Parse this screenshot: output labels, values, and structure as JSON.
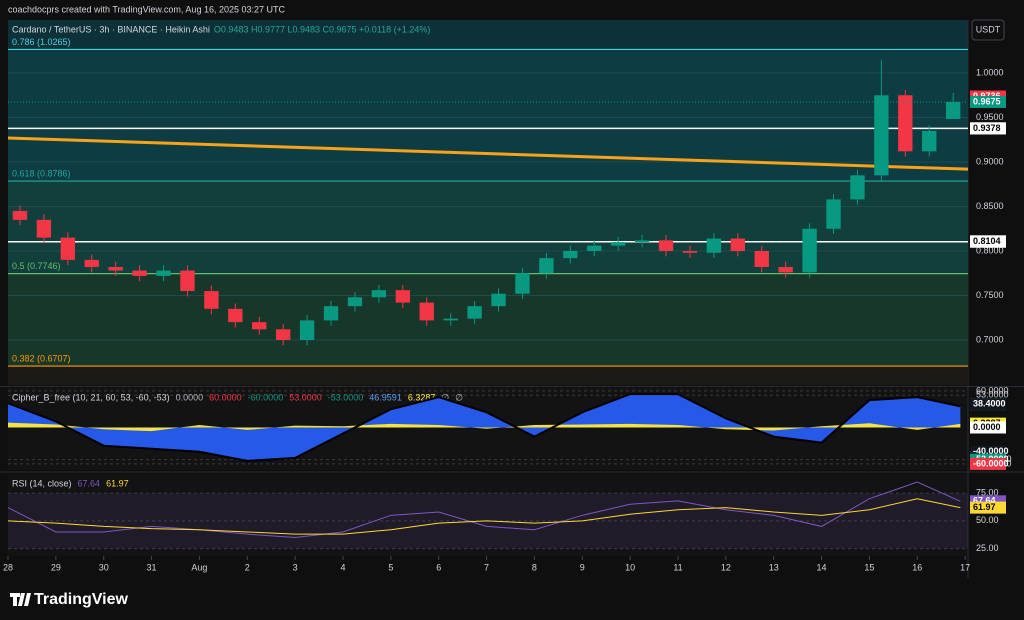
{
  "header": {
    "text": "coachdocprs created with TradingView.com, Aug 16, 2025 03:27 UTC"
  },
  "footer": {
    "logo": "TradingView"
  },
  "chart_data": [
    {
      "type": "candlestick",
      "title": "Cardano / TetherUS · 3h · BINANCE · Heikin Ashi",
      "ohlc_text": "O0.9483 H0.9777 L0.9483 C0.9675 +0.0118 (+1.24%)",
      "axis_unit": "USDT",
      "up_color": "#089981",
      "down_color": "#f23645",
      "x": [
        0.25,
        0.75,
        1.25,
        1.75,
        2.25,
        2.75,
        3.25,
        3.75,
        4.25,
        4.75,
        5.25,
        5.75,
        6.25,
        6.75,
        7.25,
        7.75,
        8.25,
        8.75,
        9.25,
        9.75,
        10.25,
        10.75,
        11.25,
        11.75,
        12.25,
        12.75,
        13.25,
        13.75,
        14.25,
        14.75,
        15.25,
        15.75,
        16.25,
        16.75,
        17.25,
        17.75,
        18.25,
        18.75,
        19.25,
        19.75
      ],
      "open": [
        0.845,
        0.835,
        0.815,
        0.79,
        0.782,
        0.778,
        0.772,
        0.778,
        0.755,
        0.735,
        0.72,
        0.712,
        0.7,
        0.722,
        0.738,
        0.748,
        0.756,
        0.742,
        0.722,
        0.724,
        0.738,
        0.752,
        0.775,
        0.792,
        0.8,
        0.806,
        0.81,
        0.812,
        0.8,
        0.798,
        0.814,
        0.8,
        0.782,
        0.776,
        0.825,
        0.858,
        0.885,
        0.975,
        0.912,
        0.9483
      ],
      "high": [
        0.851,
        0.841,
        0.821,
        0.796,
        0.788,
        0.784,
        0.784,
        0.784,
        0.761,
        0.741,
        0.726,
        0.718,
        0.728,
        0.744,
        0.754,
        0.762,
        0.762,
        0.748,
        0.73,
        0.744,
        0.758,
        0.781,
        0.798,
        0.806,
        0.812,
        0.816,
        0.818,
        0.818,
        0.806,
        0.82,
        0.82,
        0.806,
        0.788,
        0.831,
        0.864,
        0.891,
        1.015,
        0.981,
        0.941,
        0.9777
      ],
      "low": [
        0.829,
        0.809,
        0.784,
        0.776,
        0.772,
        0.766,
        0.766,
        0.749,
        0.729,
        0.714,
        0.706,
        0.694,
        0.694,
        0.716,
        0.732,
        0.742,
        0.736,
        0.716,
        0.716,
        0.718,
        0.732,
        0.746,
        0.769,
        0.786,
        0.794,
        0.8,
        0.804,
        0.794,
        0.792,
        0.792,
        0.794,
        0.776,
        0.77,
        0.77,
        0.819,
        0.852,
        0.879,
        0.906,
        0.906,
        0.9483
      ],
      "close": [
        0.835,
        0.815,
        0.79,
        0.782,
        0.778,
        0.772,
        0.778,
        0.755,
        0.735,
        0.72,
        0.712,
        0.7,
        0.722,
        0.738,
        0.748,
        0.756,
        0.742,
        0.722,
        0.724,
        0.738,
        0.752,
        0.775,
        0.792,
        0.8,
        0.806,
        0.81,
        0.812,
        0.8,
        0.798,
        0.814,
        0.8,
        0.782,
        0.776,
        0.825,
        0.858,
        0.885,
        0.975,
        0.912,
        0.935,
        0.9675
      ],
      "xlim": [
        0,
        20.06
      ],
      "xticks": [
        {
          "value": 0,
          "label": "28"
        },
        {
          "value": 1,
          "label": "29"
        },
        {
          "value": 2,
          "label": "30"
        },
        {
          "value": 3,
          "label": "31"
        },
        {
          "value": 4,
          "label": "Aug"
        },
        {
          "value": 5,
          "label": "2"
        },
        {
          "value": 6,
          "label": "3"
        },
        {
          "value": 7,
          "label": "4"
        },
        {
          "value": 8,
          "label": "5"
        },
        {
          "value": 9,
          "label": "6"
        },
        {
          "value": 10,
          "label": "7"
        },
        {
          "value": 11,
          "label": "8"
        },
        {
          "value": 12,
          "label": "9"
        },
        {
          "value": 13,
          "label": "10"
        },
        {
          "value": 14,
          "label": "11"
        },
        {
          "value": 15,
          "label": "12"
        },
        {
          "value": 16,
          "label": "13"
        },
        {
          "value": 17,
          "label": "14"
        },
        {
          "value": 18,
          "label": "15"
        },
        {
          "value": 19,
          "label": "16"
        },
        {
          "value": 20,
          "label": "17"
        }
      ],
      "ylim": [
        0.6494,
        1.0596
      ],
      "yticks": [
        {
          "value": 1.0,
          "label": "1.0000"
        },
        {
          "value": 0.95,
          "label": "0.9500"
        },
        {
          "value": 0.9,
          "label": "0.9000"
        },
        {
          "value": 0.85,
          "label": "0.8500"
        },
        {
          "value": 0.8,
          "label": "0.8000"
        },
        {
          "value": 0.75,
          "label": "0.7500"
        },
        {
          "value": 0.7,
          "label": "0.7000"
        }
      ],
      "fib_levels": [
        {
          "value": 1.0265,
          "label": "0.786 (1.0265)",
          "color": "#4dd0e1",
          "fill": "#0e3c43"
        },
        {
          "value": 0.8786,
          "label": "0.618 (0.8786)",
          "color": "#26a69a",
          "fill": "#113f3c"
        },
        {
          "value": 0.7746,
          "label": "0.5 (0.7746)",
          "color": "#66bb6a",
          "fill": "#17372a"
        },
        {
          "value": 0.6707,
          "label": "0.382 (0.6707)",
          "color": "#ff9800",
          "fill": "#1c1a14"
        }
      ],
      "trendline": {
        "x": [
          0,
          20.06
        ],
        "values": [
          0.927,
          0.892
        ],
        "color": "#f7a21b"
      },
      "h_lines": [
        {
          "value": 0.9378,
          "color": "#ffffff"
        },
        {
          "value": 0.8104,
          "color": "#ffffff"
        }
      ],
      "badges": [
        {
          "value": 0.9736,
          "label": "0.9736",
          "color": "#f23645"
        },
        {
          "value": 0.9675,
          "label": "0.9675",
          "color": "#089981"
        },
        {
          "value": 0.9378,
          "label": "0.9378",
          "color": "#ffffff"
        },
        {
          "value": 0.9378,
          "label": "0.9378",
          "color": "#ffffff"
        },
        {
          "value": 0.8109,
          "label": "0.8109",
          "color": "#ffffff"
        },
        {
          "value": 0.8104,
          "label": "0.8104",
          "color": "#ffffff"
        }
      ]
    },
    {
      "type": "area",
      "title": "Cipher_B_free (10, 21, 60, 53, -60, -53)",
      "legend_values": [
        {
          "value": "0.0000",
          "color": "#b2b5be"
        },
        {
          "value": "60.0000",
          "color": "#f23645"
        },
        {
          "value": "-60.0000",
          "color": "#089981"
        },
        {
          "value": "53.0000",
          "color": "#f23645"
        },
        {
          "value": "-53.0000",
          "color": "#089981"
        },
        {
          "value": "46.9591",
          "color": "#5b9cf6"
        },
        {
          "value": "6.3287",
          "color": "#ffeb3b"
        },
        {
          "value": "∅",
          "color": "#b2b5be"
        },
        {
          "value": "∅",
          "color": "#b2b5be"
        }
      ],
      "x": [
        0,
        1,
        2,
        3,
        4,
        5,
        6,
        7,
        8,
        9,
        10,
        11,
        12,
        13,
        14,
        15,
        16,
        17,
        18,
        19,
        19.9
      ],
      "series": [
        {
          "color": "#2962ff",
          "values": [
            40,
            10,
            -30,
            -35,
            -40,
            -55,
            -50,
            -10,
            30,
            50,
            25,
            -15,
            25,
            55,
            55,
            15,
            -15,
            -25,
            45,
            50,
            35
          ]
        },
        {
          "color": "#ffeb3b",
          "values": [
            8,
            5,
            -3,
            -6,
            4,
            -4,
            3,
            2,
            6,
            4,
            -2,
            4,
            5,
            6,
            4,
            -3,
            -5,
            2,
            7,
            -4,
            6
          ]
        }
      ],
      "xlim": [
        0,
        20.06
      ],
      "ylim": [
        -70,
        65
      ],
      "yticks": [
        {
          "value": 60,
          "label": "60.0000"
        },
        {
          "value": 53,
          "label": "53.0000"
        },
        {
          "value": -53,
          "label": "-53.0000"
        },
        {
          "value": -60,
          "label": "-60.0000"
        }
      ],
      "badges": [
        {
          "value": 38.4,
          "label": "38.4000",
          "color": "#00c853"
        },
        {
          "value": 38.4,
          "label": "38.4000",
          "color": "#131722"
        },
        {
          "value": 6.3287,
          "label": "6.3287",
          "color": "#ffeb3b"
        },
        {
          "value": 0,
          "label": "0.0000",
          "color": "#ffffff"
        },
        {
          "value": -40,
          "label": "-40.0000",
          "color": "#131722"
        },
        {
          "value": -53,
          "label": "-53.0000",
          "color": "#089981"
        },
        {
          "value": -60,
          "label": "-60.0000",
          "color": "#f23645"
        }
      ]
    },
    {
      "type": "line",
      "title": "RSI (14, close)",
      "legend_values": [
        {
          "value": 67.64,
          "color": "#7e57c2"
        },
        {
          "value": 61.97,
          "color": "#fdd835"
        }
      ],
      "x": [
        0,
        1,
        2,
        3,
        4,
        5,
        6,
        7,
        8,
        9,
        10,
        11,
        12,
        13,
        14,
        15,
        16,
        17,
        18,
        19,
        19.9
      ],
      "series": [
        {
          "color": "#7e57c2",
          "values": [
            62,
            40,
            40,
            45,
            42,
            38,
            35,
            40,
            55,
            58,
            45,
            42,
            55,
            65,
            68,
            60,
            55,
            45,
            70,
            85,
            67.64
          ]
        },
        {
          "color": "#fdd835",
          "values": [
            50,
            48,
            45,
            43,
            42,
            40,
            38,
            38,
            42,
            48,
            50,
            48,
            50,
            56,
            60,
            62,
            58,
            55,
            60,
            70,
            61.97
          ]
        }
      ],
      "xlim": [
        0,
        20.06
      ],
      "ylim": [
        18.3,
        92.3
      ],
      "yticks": [
        {
          "value": 75,
          "label": "75.00"
        },
        {
          "value": 50,
          "label": "50.00"
        },
        {
          "value": 25,
          "label": "25.00"
        }
      ],
      "badges": [
        {
          "value": 67.64,
          "label": "67.64",
          "color": "#7e57c2"
        },
        {
          "value": 61.97,
          "label": "61.97",
          "color": "#fdd835"
        }
      ]
    }
  ]
}
